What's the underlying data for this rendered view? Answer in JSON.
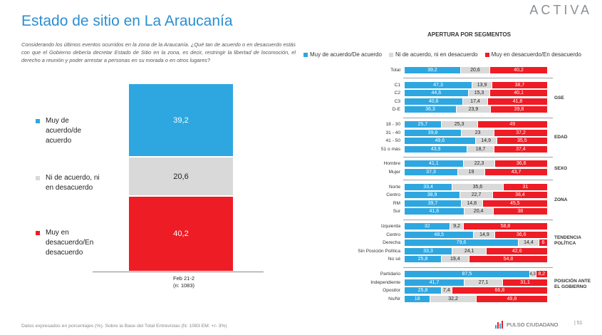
{
  "header": {
    "title": "Estado de sitio en La Araucanía",
    "logo": "ACTIVA",
    "question": "Considerando los últimos eventos ocurridos en la zona de la Araucanía. ¿Qué tan de acuerdo o en desacuerdo estás con que el Gobierno debería decretar Estado de Sitio en la zona, es decir, restringir la libertad de locomoción, el derecho a reunión y poder arrestar a personas en su morada o en otros lugares?"
  },
  "colors": {
    "agree": "#2ea7e0",
    "neutral": "#d9d9d9",
    "disagree": "#ee1c25"
  },
  "main_chart": {
    "labels": [
      "Muy de acuerdo/de acuerdo",
      "Ni de acuerdo, ni en desacuerdo",
      "Muy en desacuerdo/En desacuerdo"
    ],
    "label_lines": [
      [
        "Muy de",
        "acuerdo/de",
        "acuerdo"
      ],
      [
        "Ni de acuerdo, ni",
        "en desacuerdo"
      ],
      [
        "Muy en",
        "desacuerdo/En",
        "desacuerdo"
      ]
    ],
    "value_labels": [
      "39,2",
      "20,6",
      "40,2"
    ],
    "x_label": "Feb 21-2",
    "x_sublabel": "(n: 1083)"
  },
  "chart_data": [
    {
      "type": "bar",
      "stacked": true,
      "orientation": "vertical",
      "categories": [
        "Feb 21-2"
      ],
      "series": [
        {
          "name": "Muy de acuerdo/de acuerdo",
          "values": [
            39.2
          ]
        },
        {
          "name": "Ni de acuerdo, ni en desacuerdo",
          "values": [
            20.6
          ]
        },
        {
          "name": "Muy en desacuerdo/En desacuerdo",
          "values": [
            40.2
          ]
        }
      ],
      "ylim": [
        0,
        100
      ]
    },
    {
      "type": "bar",
      "stacked": true,
      "orientation": "horizontal",
      "title": "APERTURA POR SEGMENTOS",
      "legend": [
        "Muy de acuerdo/De acuerdo",
        "Ni de acuerdo, ni en desacuerdo",
        "Muy en desacuerdo/En desacuerdo"
      ],
      "legend_placement": "top",
      "xlim": [
        0,
        100
      ],
      "groups": [
        {
          "name": "",
          "rows": [
            {
              "label": "Total",
              "values": [
                39.2,
                20.6,
                40.2
              ],
              "value_labels": [
                "39,2",
                "20,6",
                "40,2"
              ]
            }
          ]
        },
        {
          "name": "GSE",
          "rows": [
            {
              "label": "C1",
              "values": [
                47.3,
                13.9,
                38.7
              ],
              "value_labels": [
                "47,3",
                "13,9",
                "38,7"
              ]
            },
            {
              "label": "C2",
              "values": [
                44.6,
                15.3,
                40.1
              ],
              "value_labels": [
                "44,6",
                "15,3",
                "40,1"
              ]
            },
            {
              "label": "C3",
              "values": [
                40.8,
                17.4,
                41.8
              ],
              "value_labels": [
                "40,8",
                "17,4",
                "41,8"
              ]
            },
            {
              "label": "D-E",
              "values": [
                36.3,
                23.9,
                39.8
              ],
              "value_labels": [
                "36,3",
                "23,9",
                "39,8"
              ]
            }
          ]
        },
        {
          "name": "EDAD",
          "rows": [
            {
              "label": "18 - 30",
              "values": [
                25.7,
                25.3,
                49
              ],
              "value_labels": [
                "25,7",
                "25,3",
                "49"
              ]
            },
            {
              "label": "31 - 40",
              "values": [
                39.8,
                23,
                37.2
              ],
              "value_labels": [
                "39,8",
                "23",
                "37,2"
              ]
            },
            {
              "label": "41 - 50",
              "values": [
                49.6,
                14.9,
                35.5
              ],
              "value_labels": [
                "49,6",
                "14,9",
                "35,5"
              ]
            },
            {
              "label": "51 o más",
              "values": [
                43.9,
                18.7,
                37.4
              ],
              "value_labels": [
                "43,9",
                "18,7",
                "37,4"
              ]
            }
          ]
        },
        {
          "name": "SEXO",
          "rows": [
            {
              "label": "Hombre",
              "values": [
                41.1,
                22.3,
                36.6
              ],
              "value_labels": [
                "41,1",
                "22,3",
                "36,6"
              ]
            },
            {
              "label": "Mujer",
              "values": [
                37.3,
                19,
                43.7
              ],
              "value_labels": [
                "37,3",
                "19",
                "43,7"
              ]
            }
          ]
        },
        {
          "name": "ZONA",
          "rows": [
            {
              "label": "Norte",
              "values": [
                33.4,
                35.6,
                31
              ],
              "value_labels": [
                "33,4",
                "35,6",
                "31"
              ]
            },
            {
              "label": "Centro",
              "values": [
                38.9,
                22.7,
                38.4
              ],
              "value_labels": [
                "38,9",
                "22,7",
                "38,4"
              ]
            },
            {
              "label": "RM",
              "values": [
                39.7,
                14.8,
                45.5
              ],
              "value_labels": [
                "39,7",
                "14,8",
                "45,5"
              ]
            },
            {
              "label": "Sur",
              "values": [
                41.6,
                20.4,
                38
              ],
              "value_labels": [
                "41,6",
                "20,4",
                "38"
              ]
            }
          ]
        },
        {
          "name": "TENDENCIA POLÍTICA",
          "rows": [
            {
              "label": "Izquierda",
              "values": [
                32,
                9.2,
                58.8
              ],
              "value_labels": [
                "32",
                "9,2",
                "58,8"
              ]
            },
            {
              "label": "Centro",
              "values": [
                48.5,
                14.9,
                36.6
              ],
              "value_labels": [
                "48,5",
                "14,9",
                "36,6"
              ]
            },
            {
              "label": "Derecha",
              "values": [
                79.6,
                14.4,
                6
              ],
              "value_labels": [
                "79,6",
                "14,4",
                "6"
              ]
            },
            {
              "label": "Sin Posición Política",
              "values": [
                33.3,
                24.1,
                42.6
              ],
              "value_labels": [
                "33,3",
                "24,1",
                "42,6"
              ]
            },
            {
              "label": "No sé",
              "values": [
                25.8,
                19.4,
                54.8
              ],
              "value_labels": [
                "25,8",
                "19,4",
                "54,8"
              ]
            }
          ]
        },
        {
          "name": "POSICIÓN ANTE EL GOBIERNO",
          "rows": [
            {
              "label": "Partidario",
              "values": [
                87.5,
                4.3,
                8.2
              ],
              "value_labels": [
                "87,5",
                "4,3",
                "8,2"
              ]
            },
            {
              "label": "Independiente",
              "values": [
                41.7,
                27.1,
                31.1
              ],
              "value_labels": [
                "41,7",
                "27,1",
                "31,1"
              ]
            },
            {
              "label": "Opositor",
              "values": [
                25.8,
                7.4,
                66.8
              ],
              "value_labels": [
                "25,8",
                "7,4",
                "66,8"
              ]
            },
            {
              "label": "Ns/Nr",
              "values": [
                18,
                32.2,
                49.8
              ],
              "value_labels": [
                "18",
                "32,2",
                "49,8"
              ]
            }
          ]
        }
      ]
    }
  ],
  "footer": {
    "note": "Datos expresados en porcentajes (%). Sobre la Base del Total Entrevistas (N: 1083  EM: +/- 3%)",
    "brand": "PULSO CIUDADANO",
    "page": "| 51"
  }
}
